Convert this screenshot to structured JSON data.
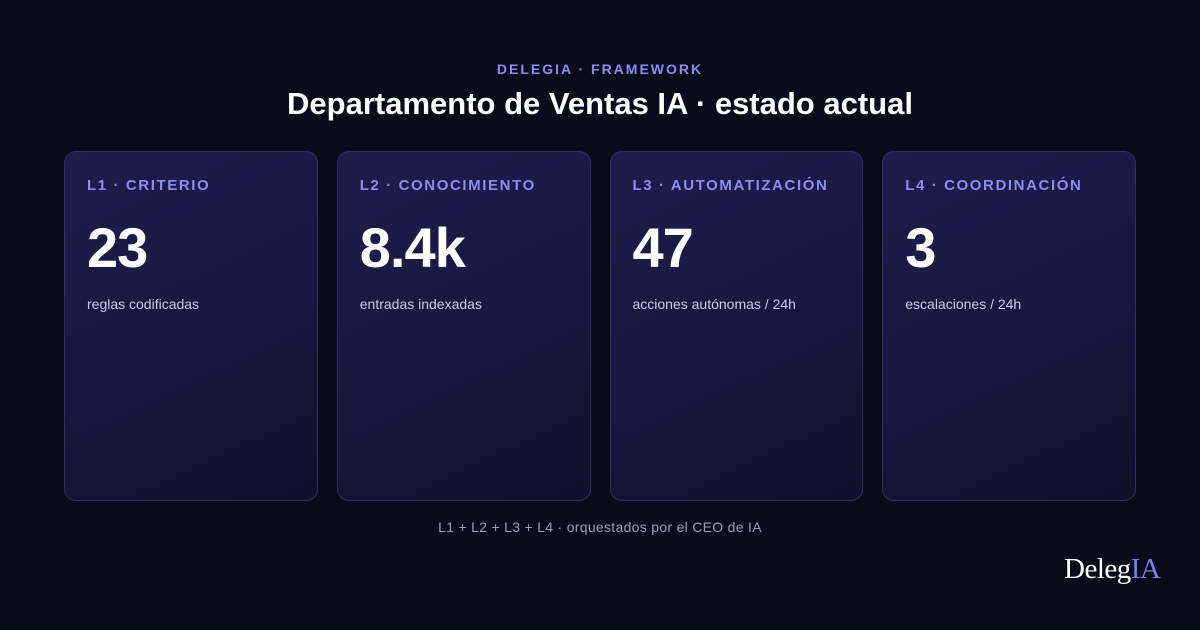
{
  "header": {
    "eyebrow": "DELEGIA · FRAMEWORK",
    "title": "Departamento de Ventas IA · estado actual"
  },
  "cards": [
    {
      "label": "L1 · CRITERIO",
      "value": "23",
      "caption": "reglas codificadas"
    },
    {
      "label": "L2 · CONOCIMIENTO",
      "value": "8.4k",
      "caption": "entradas indexadas"
    },
    {
      "label": "L3 · AUTOMATIZACIÓN",
      "value": "47",
      "caption": "acciones autónomas / 24h"
    },
    {
      "label": "L4 · COORDINACIÓN",
      "value": "3",
      "caption": "escalaciones / 24h"
    }
  ],
  "footer": {
    "text": "L1 + L2 + L3 + L4 · orquestados por el CEO de IA"
  },
  "logo": {
    "part1": "Deleg",
    "part2": "IA"
  },
  "colors": {
    "background": "#0a0b1a",
    "accent": "#8b8df5",
    "card_border": "#2e2f66"
  }
}
